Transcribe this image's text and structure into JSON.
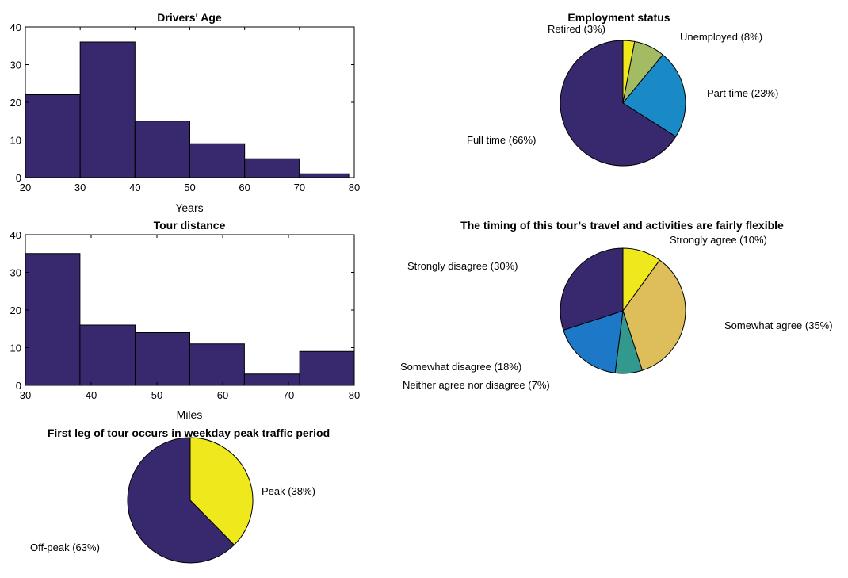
{
  "colors": {
    "dark_purple": "#38286E",
    "yellow": "#EEE81C",
    "olive_green": "#A3BC64",
    "blue": "#1A8AC6",
    "sand": "#DDBE5A",
    "teal": "#33998F",
    "mid_blue": "#1E78C8"
  },
  "chart_data": [
    {
      "id": "age",
      "type": "bar",
      "title": "Drivers' Age",
      "xlabel": "Years",
      "ylabel": "",
      "bin_edges": [
        20,
        30,
        40,
        50,
        60,
        70,
        79
      ],
      "values": [
        22,
        36,
        15,
        9,
        5,
        1
      ],
      "xlim": [
        20,
        80
      ],
      "ylim": [
        0,
        40
      ],
      "xticks": [
        20,
        30,
        40,
        50,
        60,
        70,
        80
      ],
      "yticks": [
        0,
        10,
        20,
        30,
        40
      ],
      "grid": false,
      "color": "#38286E"
    },
    {
      "id": "distance",
      "type": "bar",
      "title": "Tour distance",
      "xlabel": "Miles",
      "ylabel": "",
      "bin_edges": [
        30,
        38.3,
        46.7,
        55,
        63.3,
        71.7,
        80
      ],
      "values": [
        35,
        16,
        14,
        11,
        3,
        9
      ],
      "xlim": [
        30,
        80
      ],
      "ylim": [
        0,
        40
      ],
      "xticks": [
        30,
        40,
        50,
        60,
        70,
        80
      ],
      "yticks": [
        0,
        10,
        20,
        30,
        40
      ],
      "grid": false,
      "color": "#38286E"
    },
    {
      "id": "peak",
      "type": "pie",
      "title": "First leg of tour occurs in weekday peak traffic period",
      "slices": [
        {
          "label": "Peak (38%)",
          "value": 38,
          "color": "#EEE81C"
        },
        {
          "label": "Off-peak (63%)",
          "value": 63,
          "color": "#38286E"
        }
      ]
    },
    {
      "id": "employment",
      "type": "pie",
      "title": "Employment status",
      "slices": [
        {
          "label": "Retired  (3%)",
          "value": 3,
          "color": "#EEE81C"
        },
        {
          "label": "Unemployed  (8%)",
          "value": 8,
          "color": "#A3BC64"
        },
        {
          "label": "Part time (23%)",
          "value": 23,
          "color": "#1A8AC6"
        },
        {
          "label": "Full time (66%)",
          "value": 66,
          "color": "#38286E"
        }
      ]
    },
    {
      "id": "flexible",
      "type": "pie",
      "title": "The timing of this tour’s travel and activities are fairly flexible",
      "slices": [
        {
          "label": "Strongly agree (10%)",
          "value": 10,
          "color": "#EEE81C"
        },
        {
          "label": "Somewhat agree (35%)",
          "value": 35,
          "color": "#DDBE5A"
        },
        {
          "label": "Neither agree nor disagree  (7%)",
          "value": 7,
          "color": "#33998F"
        },
        {
          "label": "Somewhat disagree (18%)",
          "value": 18,
          "color": "#1E78C8"
        },
        {
          "label": "Strongly disagree (30%)",
          "value": 30,
          "color": "#38286E"
        }
      ]
    }
  ]
}
